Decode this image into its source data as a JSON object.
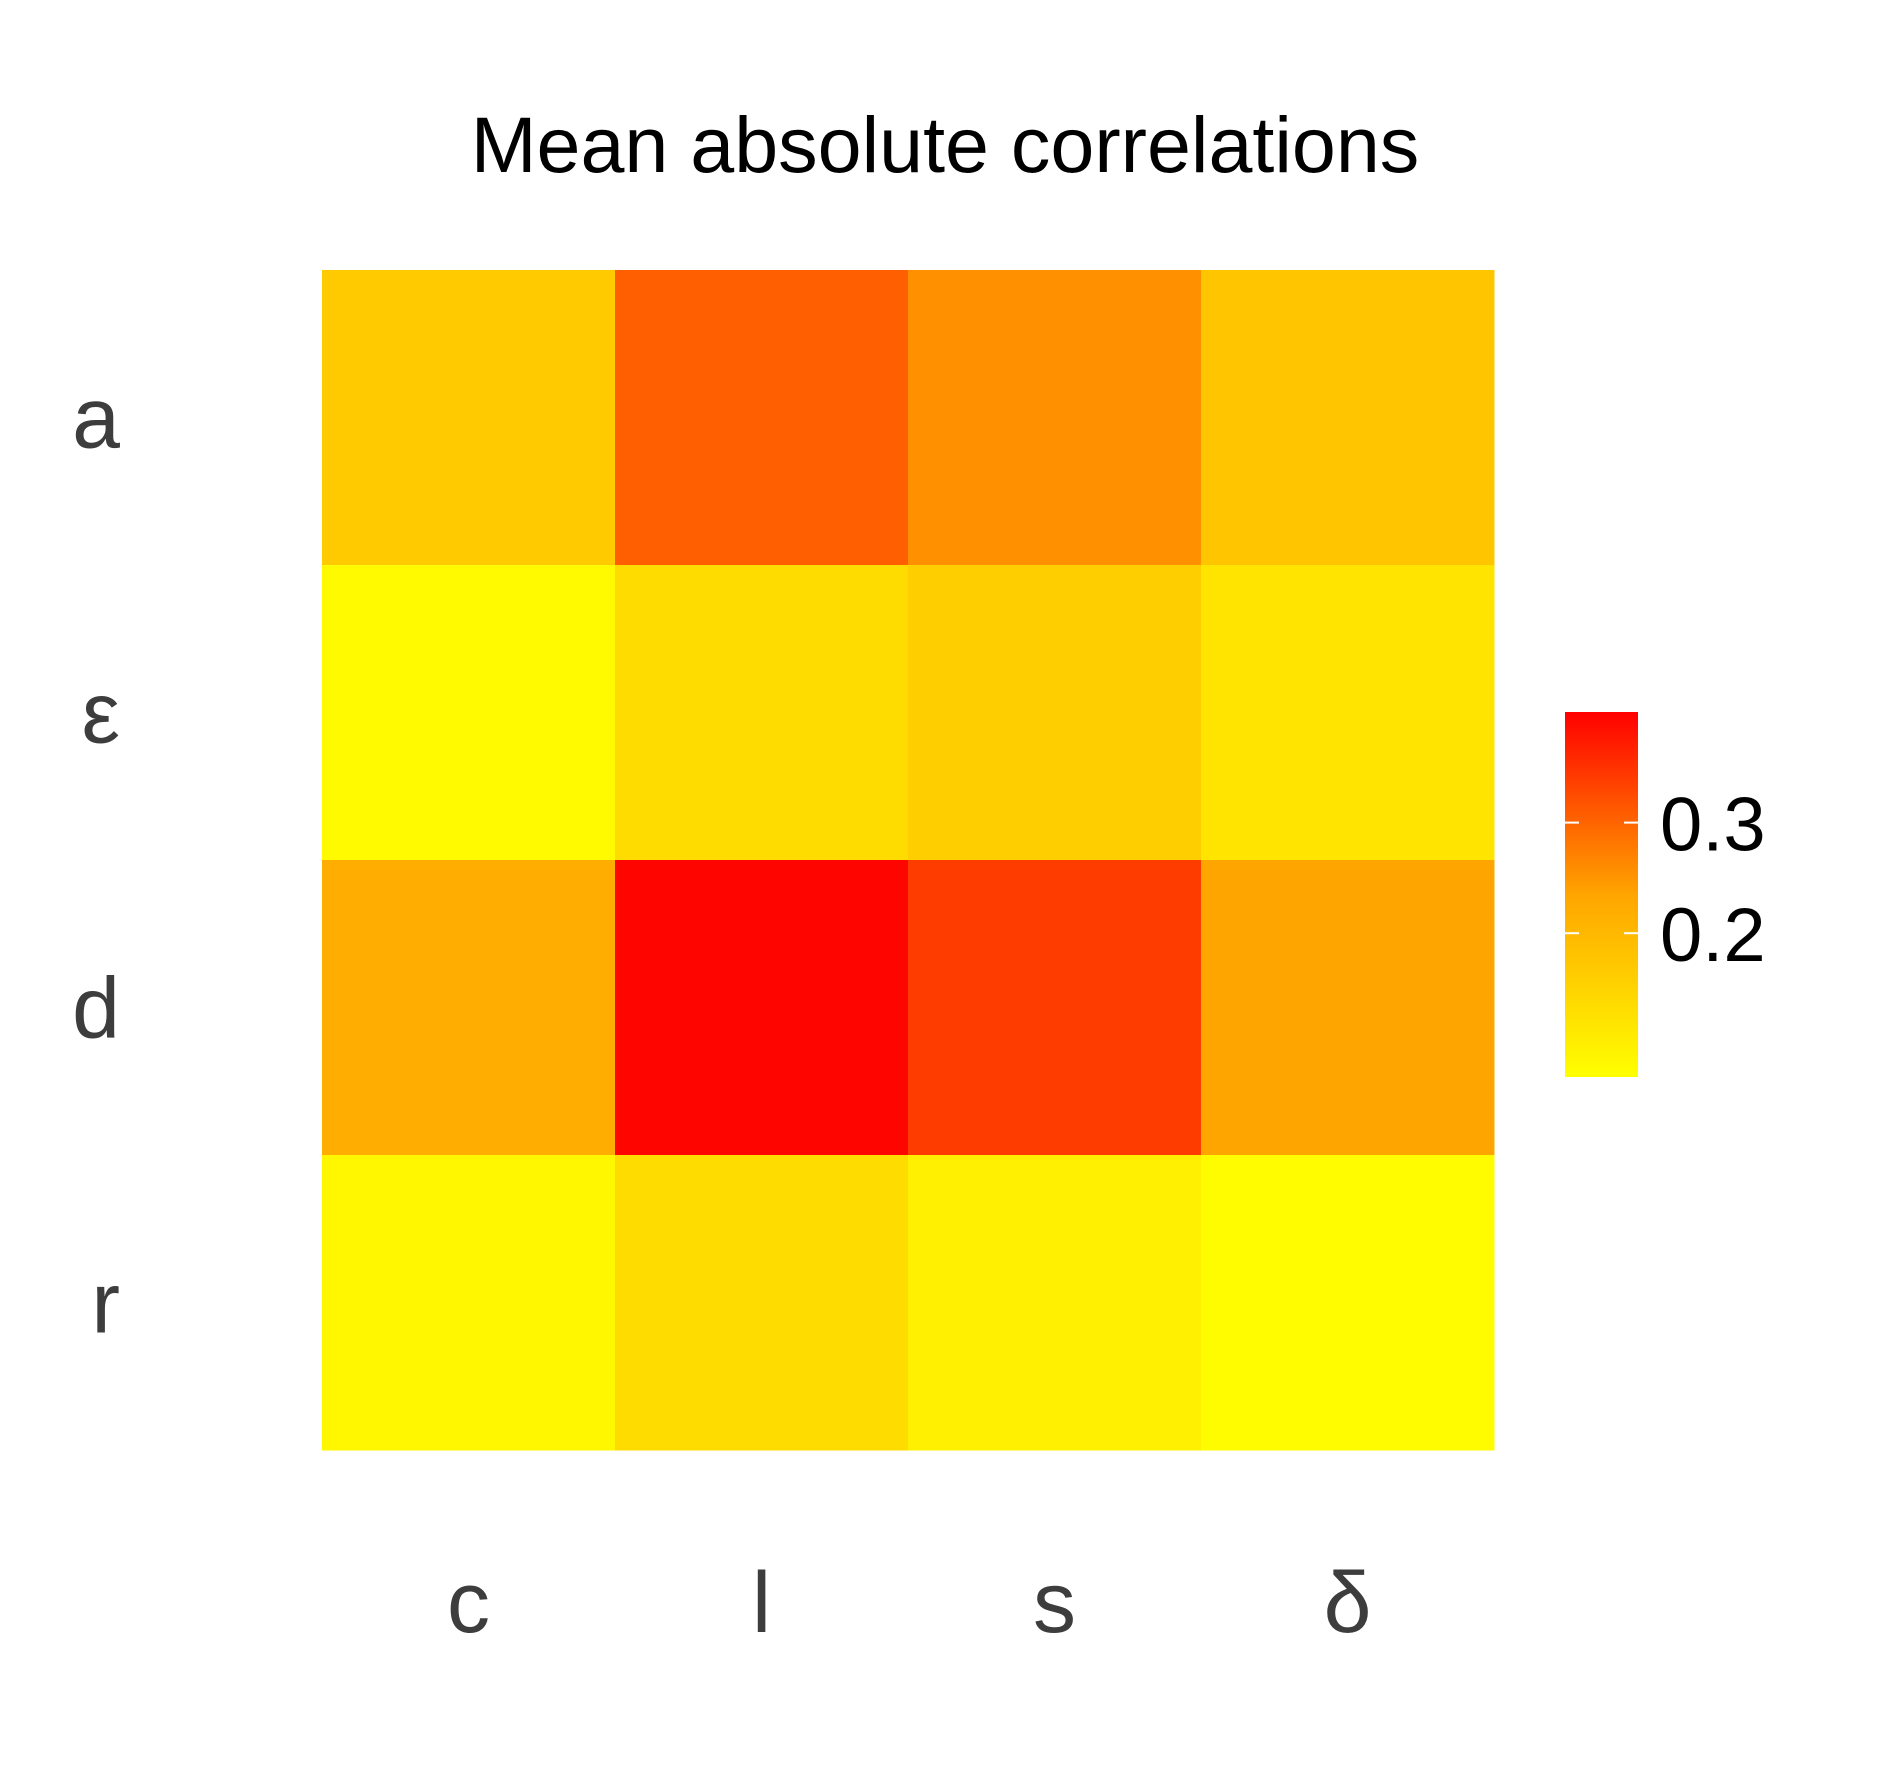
{
  "chart_data": {
    "type": "heatmap",
    "title": "Mean absolute correlations",
    "x_categories": [
      "c",
      "l",
      "s",
      "δ"
    ],
    "y_categories": [
      "a",
      "ε",
      "d",
      "r"
    ],
    "values": [
      [
        0.165,
        0.305,
        0.255,
        0.175
      ],
      [
        0.08,
        0.135,
        0.16,
        0.12
      ],
      [
        0.22,
        0.395,
        0.34,
        0.235
      ],
      [
        0.085,
        0.135,
        0.1,
        0.075
      ]
    ],
    "colorbar": {
      "min": 0.07,
      "max": 0.4,
      "ticks": [
        0.2,
        0.3
      ],
      "tick_labels": [
        "0.2",
        "0.3"
      ],
      "low_color": "#ffff00",
      "mid_color": "#ffa500",
      "high_color": "#ff0000"
    },
    "legend_position": "right",
    "grid": false
  }
}
